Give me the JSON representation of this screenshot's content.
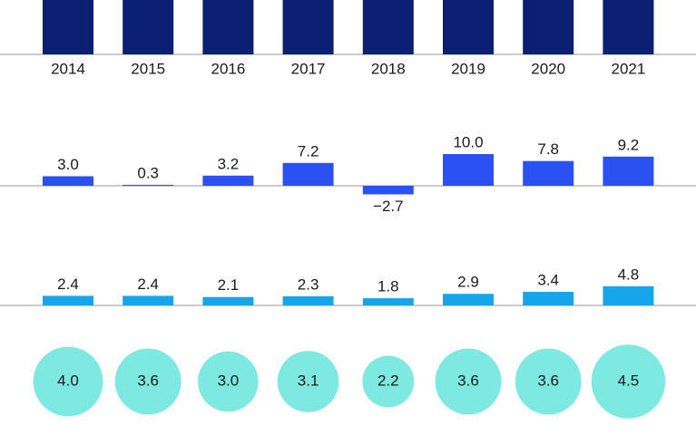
{
  "chart_data": [
    {
      "type": "bar",
      "categories": [
        "2014",
        "2015",
        "2016",
        "2017",
        "2018",
        "2019",
        "2020",
        "2021"
      ],
      "color": "#0b1f73"
    },
    {
      "type": "bar",
      "values": [
        3.0,
        0.3,
        3.2,
        7.2,
        -2.7,
        10.0,
        7.8,
        9.2
      ],
      "value_labels": [
        "3.0",
        "0.3",
        "3.2",
        "7.2",
        "−2.7",
        "10.0",
        "7.8",
        "9.2"
      ],
      "color": "#2a52f2"
    },
    {
      "type": "bar",
      "values": [
        2.4,
        2.4,
        2.1,
        2.3,
        1.8,
        2.9,
        3.4,
        4.8
      ],
      "value_labels": [
        "2.4",
        "2.4",
        "2.1",
        "2.3",
        "1.8",
        "2.9",
        "3.4",
        "4.8"
      ],
      "color": "#15a6ea"
    },
    {
      "type": "bubble",
      "values": [
        4.0,
        3.6,
        3.0,
        3.1,
        2.2,
        3.6,
        3.6,
        4.5
      ],
      "value_labels": [
        "4.0",
        "3.6",
        "3.0",
        "3.1",
        "2.2",
        "3.6",
        "3.6",
        "4.5"
      ],
      "color": "#7de9e1"
    }
  ]
}
